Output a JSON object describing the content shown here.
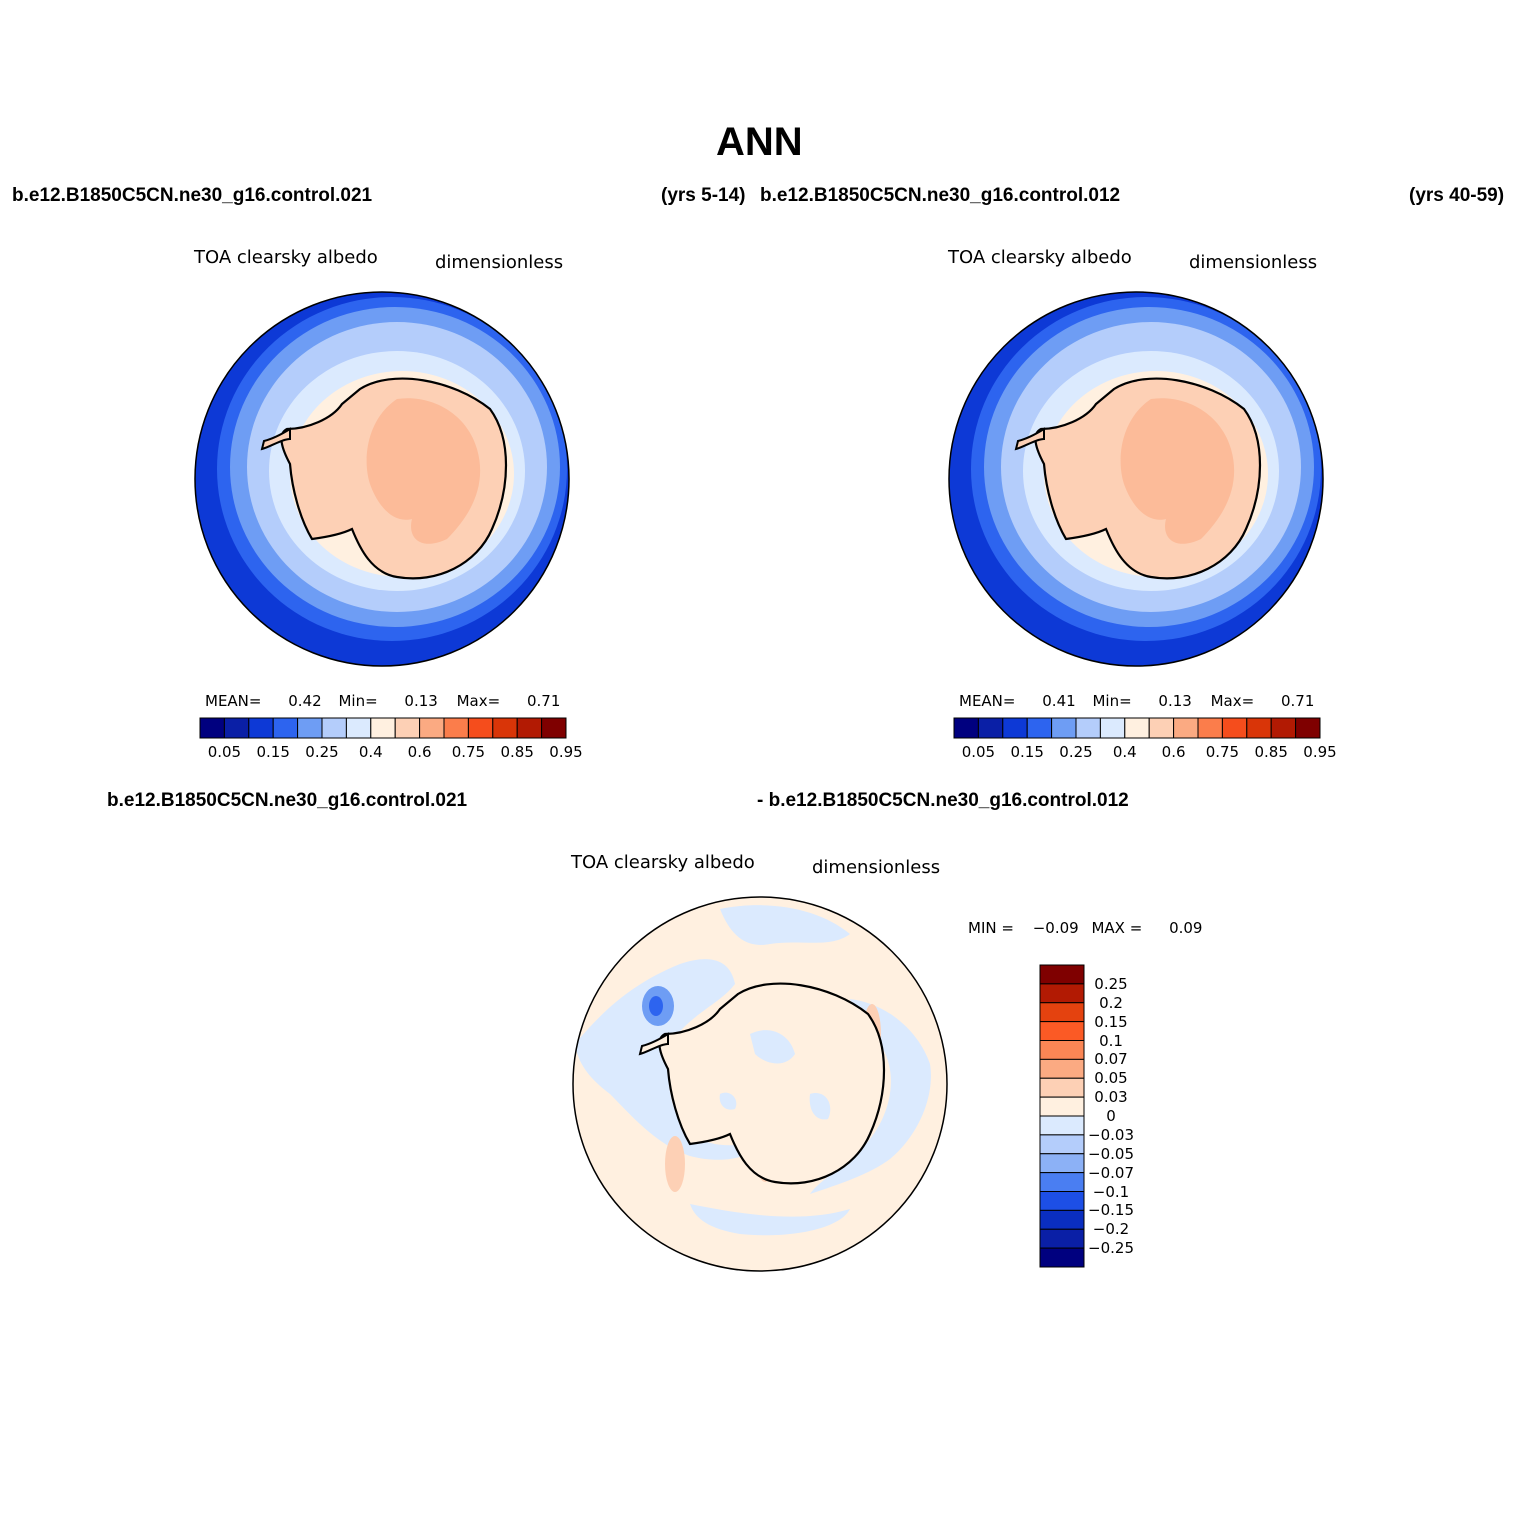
{
  "title": "ANN",
  "header": {
    "case1": "b.e12.B1850C5CN.ne30_g16.control.021",
    "years1": "(yrs 5-14)",
    "case2": "b.e12.B1850C5CN.ne30_g16.control.012",
    "years2": "(yrs 40-59)"
  },
  "diff_header": {
    "case1": "b.e12.B1850C5CN.ne30_g16.control.021",
    "case2": "- b.e12.B1850C5CN.ne30_g16.control.012"
  },
  "panels": [
    {
      "variable": "TOA clearsky albedo",
      "units": "dimensionless",
      "mean_label": "MEAN=",
      "mean": "0.42",
      "min_label": "Min=",
      "min": "0.13",
      "max_label": "Max=",
      "max": "0.71"
    },
    {
      "variable": "TOA clearsky albedo",
      "units": "dimensionless",
      "mean_label": "MEAN=",
      "mean": "0.41",
      "min_label": "Min=",
      "min": "0.13",
      "max_label": "Max=",
      "max": "0.71"
    }
  ],
  "diff_panel": {
    "variable": "TOA clearsky albedo",
    "units": "dimensionless",
    "min_label": "MIN =",
    "min": "−0.09",
    "max_label": "MAX =",
    "max": "0.09"
  },
  "colorbar": {
    "tick_labels": [
      "0.05",
      "0.15",
      "0.25",
      "0.4",
      "0.6",
      "0.75",
      "0.85",
      "0.95"
    ],
    "colors": [
      "#00007f",
      "#0a1fa6",
      "#0d39d6",
      "#2d64ef",
      "#6e9df4",
      "#b4cdfb",
      "#dbeafe",
      "#fff0e0",
      "#fdd0b5",
      "#fbaa82",
      "#fb7d4b",
      "#f54d1c",
      "#d93508",
      "#b21a03",
      "#7f0000"
    ]
  },
  "diff_colorbar": {
    "tick_labels": [
      "0.25",
      "0.2",
      "0.15",
      "0.1",
      "0.07",
      "0.05",
      "0.03",
      "0",
      "−0.03",
      "−0.05",
      "−0.07",
      "−0.1",
      "−0.15",
      "−0.2",
      "−0.25"
    ],
    "colors": [
      "#7f0000",
      "#b21a03",
      "#e4420f",
      "#fb5a25",
      "#fb8655",
      "#fbaa82",
      "#fdd0b5",
      "#fff0e0",
      "#dbeafe",
      "#b4cdfb",
      "#8cb1f6",
      "#4a7ef2",
      "#1d4fe6",
      "#0a2ec0",
      "#0a1fa6",
      "#00007f"
    ]
  }
}
